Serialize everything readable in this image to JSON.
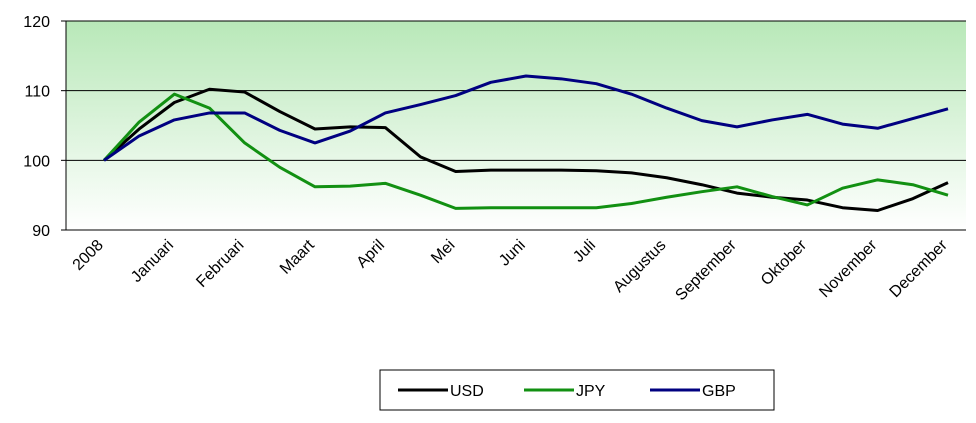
{
  "chart_data": {
    "type": "line",
    "categories": [
      "2008",
      null,
      "Januari",
      null,
      "Februari",
      null,
      "Maart",
      null,
      "April",
      null,
      "Mei",
      null,
      "Juni",
      null,
      "Juli",
      null,
      "Augustus",
      null,
      "September",
      null,
      "Oktober",
      null,
      "November",
      null,
      "December"
    ],
    "series": [
      {
        "name": "USD",
        "color": "#000000",
        "values": [
          100,
          104.5,
          108.3,
          110.2,
          109.8,
          107,
          104.5,
          104.8,
          104.7,
          100.5,
          98.4,
          98.6,
          98.6,
          98.6,
          98.5,
          98.2,
          97.5,
          96.5,
          95.3,
          94.7,
          94.3,
          93.2,
          92.8,
          94.5,
          96.8
        ]
      },
      {
        "name": "JPY",
        "color": "#129012",
        "values": [
          100,
          105.5,
          109.5,
          107.5,
          102.5,
          99.0,
          96.2,
          96.3,
          96.7,
          95.0,
          93.1,
          93.2,
          93.2,
          93.2,
          93.2,
          93.8,
          94.7,
          95.5,
          96.2,
          94.8,
          93.6,
          96.0,
          97.2,
          96.5,
          95.0
        ]
      },
      {
        "name": "GBP",
        "color": "#000080",
        "values": [
          100,
          103.5,
          105.8,
          106.8,
          106.8,
          104.3,
          102.5,
          104.2,
          106.8,
          108.0,
          109.3,
          111.2,
          112.1,
          111.7,
          111.0,
          109.5,
          107.5,
          105.7,
          104.8,
          105.8,
          106.6,
          105.2,
          104.6,
          106.0,
          107.4
        ]
      }
    ],
    "ylim": [
      90,
      120
    ],
    "yticks": [
      90,
      100,
      110,
      120
    ],
    "grid": true,
    "legend": "bottom"
  }
}
